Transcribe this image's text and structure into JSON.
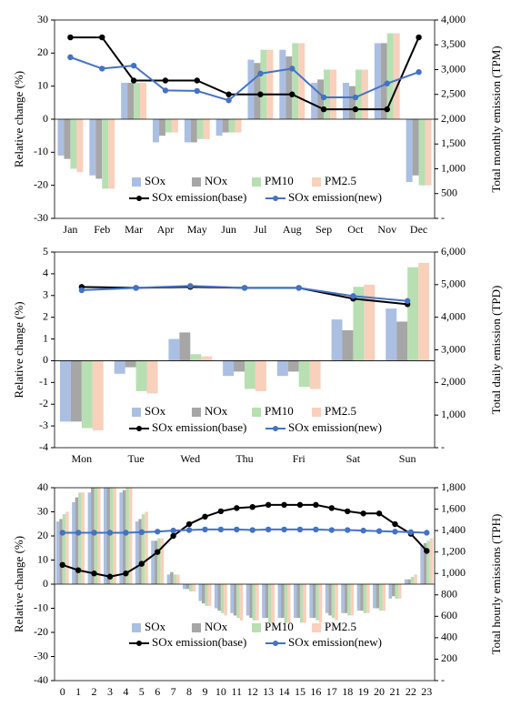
{
  "chart_data": [
    {
      "type": "bar-line",
      "legend": "bottom",
      "ylabel": "Relative change (%)",
      "y2label": "Total monthly emission (TPM)",
      "categories": [
        "Jan",
        "Feb",
        "Mar",
        "Apr",
        "May",
        "Jun",
        "Jul",
        "Aug",
        "Sep",
        "Oct",
        "Nov",
        "Dec"
      ],
      "ylim": [
        -30,
        30
      ],
      "yticks": [
        -30,
        -20,
        -10,
        0,
        10,
        20,
        30
      ],
      "y2lim": [
        0,
        4000
      ],
      "y2ticks": [
        {
          "value": 0,
          "label": "-"
        },
        {
          "value": 500,
          "label": "500"
        },
        {
          "value": 1000,
          "label": "1,000"
        },
        {
          "value": 1500,
          "label": "1,500"
        },
        {
          "value": 2000,
          "label": "2,000"
        },
        {
          "value": 2500,
          "label": "2,500"
        },
        {
          "value": 3000,
          "label": "3,000"
        },
        {
          "value": 3500,
          "label": "3,500"
        },
        {
          "value": 4000,
          "label": "4,000"
        }
      ],
      "series": [
        {
          "name": "SOx",
          "color": "#aabfe2",
          "values": [
            -11,
            -17,
            11,
            -7,
            -7,
            -5,
            18,
            21,
            11,
            11,
            23,
            -19
          ]
        },
        {
          "name": "NOx",
          "color": "#a6a6a6",
          "values": [
            -12,
            -18,
            11,
            -5,
            -7,
            -4,
            17,
            19,
            12,
            10,
            23,
            -17
          ]
        },
        {
          "name": "PM10",
          "color": "#b8dfb1",
          "values": [
            -15,
            -21,
            11,
            -4,
            -6,
            -4,
            21,
            23,
            15,
            15,
            26,
            -20
          ]
        },
        {
          "name": "PM2.5",
          "color": "#f8d0bb",
          "values": [
            -16,
            -21,
            11,
            -4,
            -6,
            -4,
            21,
            23,
            15,
            15,
            26,
            -20
          ]
        },
        {
          "name": "SOx emission(base)",
          "color": "#000000",
          "axis": "y2",
          "values": [
            3650,
            3650,
            2780,
            2780,
            2780,
            2500,
            2500,
            2500,
            2200,
            2200,
            2200,
            3650
          ]
        },
        {
          "name": "SOx emission(new)",
          "color": "#4472c4",
          "axis": "y2",
          "values": [
            3250,
            3020,
            3080,
            2580,
            2570,
            2380,
            2920,
            3020,
            2440,
            2440,
            2720,
            2950
          ]
        }
      ]
    },
    {
      "type": "bar-line",
      "legend": "bottom",
      "ylabel": "Relative change (%)",
      "y2label": "Total daily emission (TPD)",
      "categories": [
        "Mon",
        "Tue",
        "Wed",
        "Thu",
        "Fri",
        "Sat",
        "Sun"
      ],
      "ylim": [
        -4,
        5
      ],
      "yticks": [
        -4,
        -3,
        -2,
        -1,
        0,
        1,
        2,
        3,
        4,
        5
      ],
      "y2lim": [
        0,
        6000
      ],
      "y2ticks": [
        {
          "value": 0,
          "label": "-"
        },
        {
          "value": 1000,
          "label": "1,000"
        },
        {
          "value": 2000,
          "label": "2,000"
        },
        {
          "value": 3000,
          "label": "3,000"
        },
        {
          "value": 4000,
          "label": "4,000"
        },
        {
          "value": 5000,
          "label": "5,000"
        },
        {
          "value": 6000,
          "label": "6,000"
        }
      ],
      "series": [
        {
          "name": "SOx",
          "color": "#aabfe2",
          "values": [
            -2.8,
            -0.6,
            1.0,
            -0.7,
            -0.7,
            1.9,
            2.4
          ]
        },
        {
          "name": "NOx",
          "color": "#a6a6a6",
          "values": [
            -2.8,
            -0.3,
            1.3,
            -0.5,
            -0.5,
            1.4,
            1.8
          ]
        },
        {
          "name": "PM10",
          "color": "#b8dfb1",
          "values": [
            -3.1,
            -1.4,
            0.3,
            -1.3,
            -1.2,
            3.4,
            4.3
          ]
        },
        {
          "name": "PM2.5",
          "color": "#f8d0bb",
          "values": [
            -3.2,
            -1.5,
            0.2,
            -1.4,
            -1.3,
            3.5,
            4.5
          ]
        },
        {
          "name": "SOx emission(base)",
          "color": "#000000",
          "axis": "y2",
          "values": [
            4930,
            4900,
            4930,
            4900,
            4900,
            4570,
            4400
          ]
        },
        {
          "name": "SOx emission(new)",
          "color": "#4472c4",
          "axis": "y2",
          "values": [
            4830,
            4900,
            4960,
            4900,
            4900,
            4650,
            4500
          ]
        }
      ]
    },
    {
      "type": "bar-line",
      "legend": "bottom",
      "ylabel": "Relative change (%)",
      "y2label": "Total hourly emissions (TPH)",
      "categories": [
        "0",
        "1",
        "2",
        "3",
        "4",
        "5",
        "6",
        "7",
        "8",
        "9",
        "10",
        "11",
        "12",
        "13",
        "14",
        "15",
        "16",
        "17",
        "18",
        "19",
        "20",
        "21",
        "22",
        "23"
      ],
      "ylim": [
        -40,
        40
      ],
      "yticks": [
        -40,
        -30,
        -20,
        -10,
        0,
        10,
        20,
        30,
        40
      ],
      "y2lim": [
        0,
        1800
      ],
      "y2ticks": [
        {
          "value": 0,
          "label": "-"
        },
        200,
        400,
        600,
        800,
        {
          "value": 1000,
          "label": "1,000"
        },
        {
          "value": 1200,
          "label": "1,200"
        },
        {
          "value": 1400,
          "label": "1,400"
        },
        {
          "value": 1600,
          "label": "1,600"
        },
        {
          "value": 1800,
          "label": "1,800"
        }
      ],
      "series": [
        {
          "name": "SOx",
          "color": "#aabfe2",
          "values": [
            26,
            34,
            38,
            40,
            38,
            26,
            18,
            4,
            -2,
            -7,
            -10,
            -12,
            -13,
            -14,
            -14,
            -14,
            -14,
            -12,
            -12,
            -11,
            -10,
            -6,
            2,
            16
          ]
        },
        {
          "name": "NOx",
          "color": "#a6a6a6",
          "values": [
            27,
            36,
            40,
            40,
            39,
            27,
            18,
            5,
            -2,
            -8,
            -11,
            -13,
            -14,
            -14,
            -14,
            -14,
            -14,
            -13,
            -12,
            -11,
            -10,
            -5,
            2,
            17
          ]
        },
        {
          "name": "PM10",
          "color": "#b8dfb1",
          "values": [
            29,
            38,
            40,
            40,
            40,
            29,
            19,
            4,
            -3,
            -9,
            -12,
            -14,
            -15,
            -16,
            -16,
            -16,
            -15,
            -14,
            -13,
            -12,
            -11,
            -6,
            3,
            18
          ]
        },
        {
          "name": "PM2.5",
          "color": "#f8d0bb",
          "values": [
            30,
            38,
            40,
            40,
            40,
            30,
            19,
            4,
            -3,
            -9,
            -13,
            -15,
            -15,
            -16,
            -16,
            -16,
            -16,
            -15,
            -13,
            -12,
            -11,
            -6,
            4,
            19
          ]
        },
        {
          "name": "SOx emission(base)",
          "color": "#000000",
          "axis": "y2",
          "values": [
            1080,
            1030,
            1000,
            970,
            1000,
            1090,
            1200,
            1350,
            1460,
            1530,
            1580,
            1610,
            1620,
            1640,
            1640,
            1640,
            1640,
            1610,
            1580,
            1560,
            1560,
            1460,
            1370,
            1210
          ]
        },
        {
          "name": "SOx emission(new)",
          "color": "#4472c4",
          "axis": "y2",
          "values": [
            1380,
            1380,
            1380,
            1380,
            1380,
            1385,
            1390,
            1400,
            1405,
            1410,
            1410,
            1410,
            1405,
            1410,
            1410,
            1410,
            1410,
            1405,
            1405,
            1400,
            1395,
            1390,
            1385,
            1380
          ]
        }
      ]
    }
  ]
}
